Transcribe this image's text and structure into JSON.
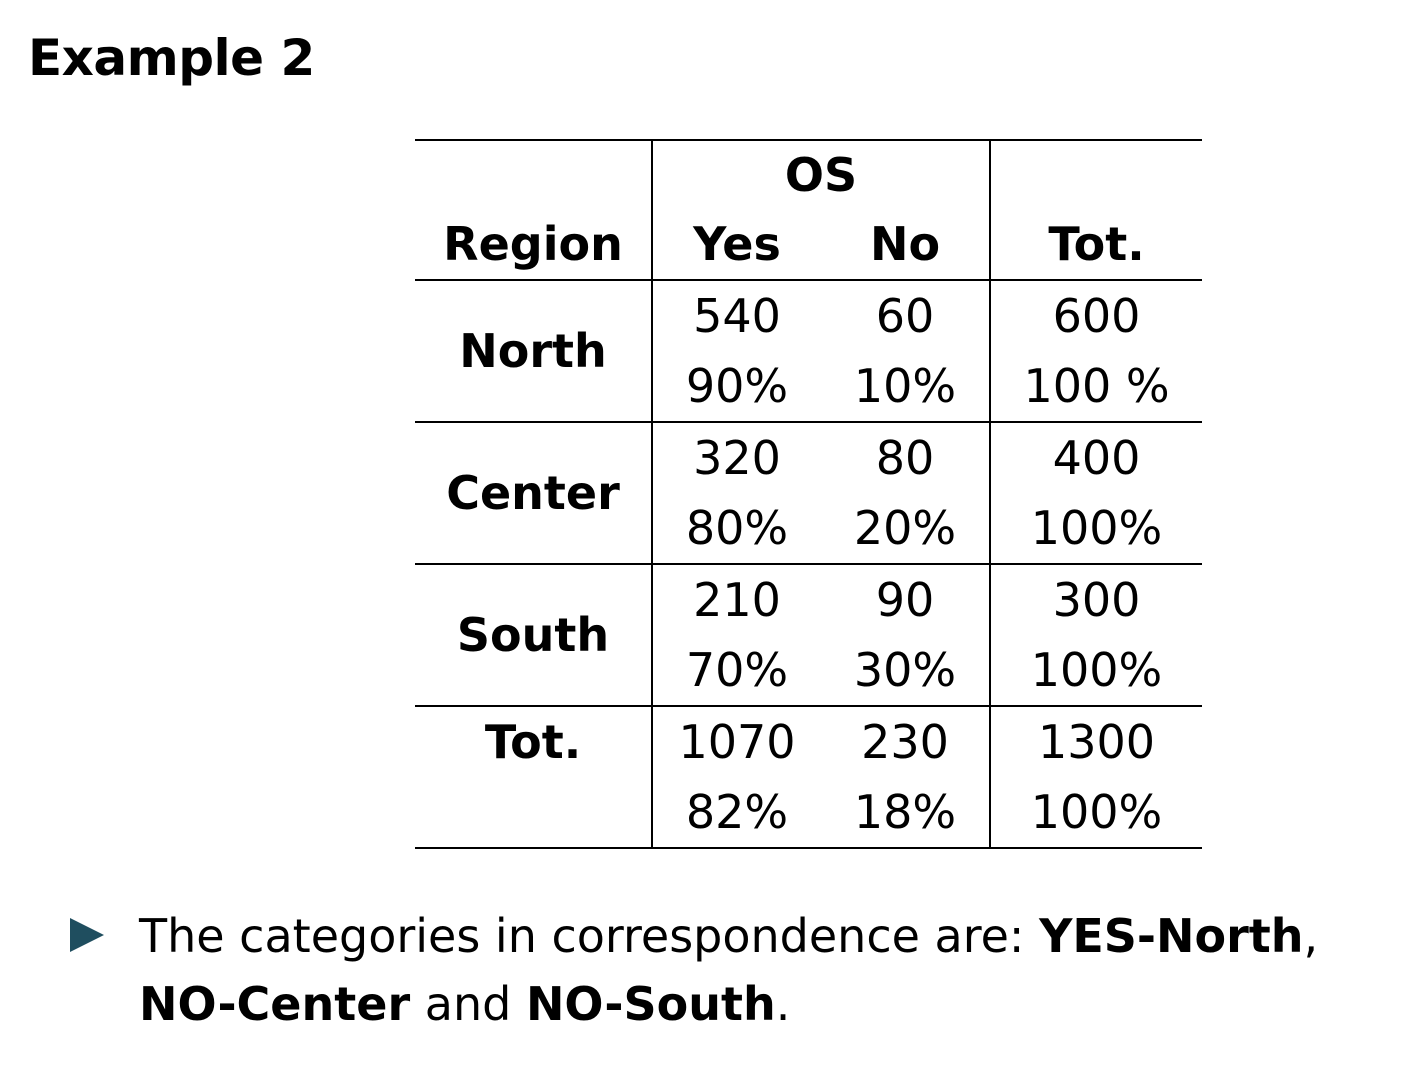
{
  "title": "Example 2",
  "table": {
    "group_header": "OS",
    "headers": [
      "Region",
      "Yes",
      "No",
      "Tot."
    ],
    "rows": [
      {
        "label": "North",
        "counts": [
          "540",
          "60",
          "600"
        ],
        "percents": [
          "90%",
          "10%",
          "100 %"
        ]
      },
      {
        "label": "Center",
        "counts": [
          "320",
          "80",
          "400"
        ],
        "percents": [
          "80%",
          "20%",
          "100%"
        ]
      },
      {
        "label": "South",
        "counts": [
          "210",
          "90",
          "300"
        ],
        "percents": [
          "70%",
          "30%",
          "100%"
        ]
      },
      {
        "label": "Tot.",
        "counts": [
          "1070",
          "230",
          "1300"
        ],
        "percents": [
          "82%",
          "18%",
          "100%"
        ]
      }
    ]
  },
  "bullet": {
    "prefix": "The categories in correspondence are: ",
    "b1": "YES-North",
    "sep1": ",",
    "b2": "NO-Center",
    "mid": " and ",
    "b3": "NO-South",
    "end": "."
  },
  "colors": {
    "bullet_marker": "#1f4e5f"
  }
}
